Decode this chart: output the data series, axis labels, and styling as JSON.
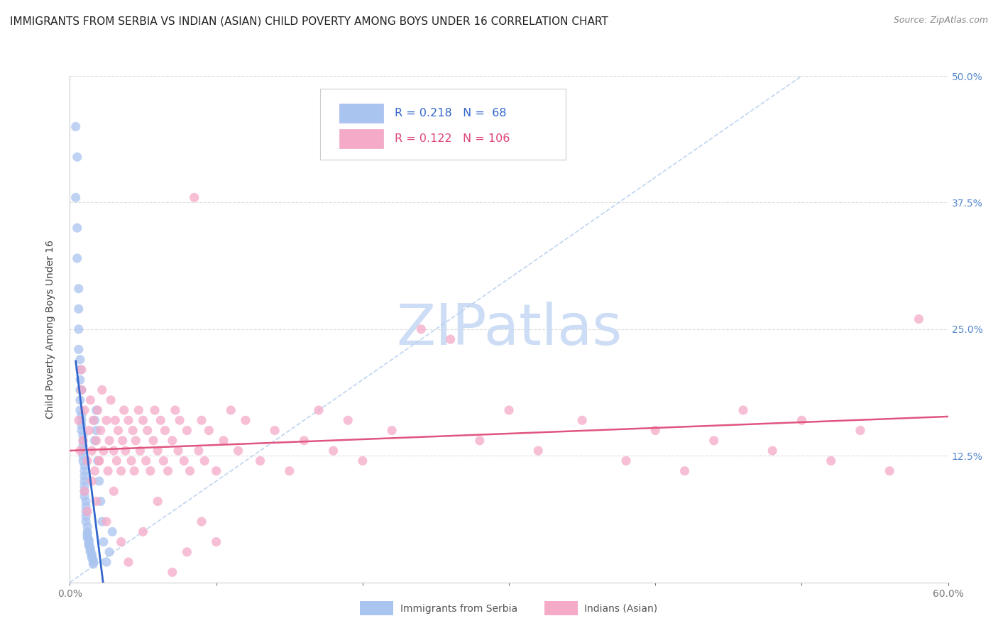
{
  "title": "IMMIGRANTS FROM SERBIA VS INDIAN (ASIAN) CHILD POVERTY AMONG BOYS UNDER 16 CORRELATION CHART",
  "source": "Source: ZipAtlas.com",
  "ylabel": "Child Poverty Among Boys Under 16",
  "xlim": [
    0.0,
    0.6
  ],
  "ylim": [
    0.0,
    0.5
  ],
  "serbia_R": 0.218,
  "serbia_N": 68,
  "indian_R": 0.122,
  "indian_N": 106,
  "serbia_color": "#aac4f0",
  "indian_color": "#f5aac8",
  "serbia_line_color": "#3366cc",
  "indian_line_color": "#e05580",
  "diag_line_color": "#b8d0f0",
  "grid_color": "#dddddd",
  "right_tick_color": "#5588cc",
  "watermark_color": "#ccddf5",
  "title_fontsize": 11,
  "axis_label_fontsize": 10,
  "tick_fontsize": 10,
  "serbia_scatter_x": [
    0.004,
    0.005,
    0.004,
    0.005,
    0.005,
    0.006,
    0.006,
    0.006,
    0.006,
    0.007,
    0.007,
    0.007,
    0.007,
    0.007,
    0.008,
    0.008,
    0.008,
    0.008,
    0.009,
    0.009,
    0.009,
    0.009,
    0.009,
    0.009,
    0.01,
    0.01,
    0.01,
    0.01,
    0.01,
    0.01,
    0.01,
    0.011,
    0.011,
    0.011,
    0.011,
    0.011,
    0.012,
    0.012,
    0.012,
    0.012,
    0.012,
    0.013,
    0.013,
    0.013,
    0.013,
    0.014,
    0.014,
    0.014,
    0.015,
    0.015,
    0.015,
    0.016,
    0.016,
    0.016,
    0.017,
    0.017,
    0.018,
    0.018,
    0.019,
    0.02,
    0.021,
    0.022,
    0.023,
    0.025,
    0.027,
    0.029,
    0.007,
    0.008
  ],
  "serbia_scatter_y": [
    0.45,
    0.42,
    0.38,
    0.35,
    0.32,
    0.29,
    0.27,
    0.25,
    0.23,
    0.21,
    0.2,
    0.19,
    0.18,
    0.17,
    0.165,
    0.16,
    0.155,
    0.15,
    0.145,
    0.14,
    0.135,
    0.13,
    0.125,
    0.12,
    0.115,
    0.11,
    0.105,
    0.1,
    0.095,
    0.09,
    0.085,
    0.08,
    0.075,
    0.07,
    0.065,
    0.06,
    0.055,
    0.05,
    0.048,
    0.046,
    0.044,
    0.042,
    0.04,
    0.038,
    0.036,
    0.034,
    0.032,
    0.03,
    0.028,
    0.026,
    0.024,
    0.022,
    0.02,
    0.018,
    0.16,
    0.14,
    0.17,
    0.15,
    0.12,
    0.1,
    0.08,
    0.06,
    0.04,
    0.02,
    0.03,
    0.05,
    0.22,
    0.19
  ],
  "indian_scatter_x": [
    0.006,
    0.007,
    0.008,
    0.009,
    0.01,
    0.012,
    0.013,
    0.014,
    0.015,
    0.016,
    0.017,
    0.018,
    0.019,
    0.02,
    0.021,
    0.022,
    0.023,
    0.025,
    0.026,
    0.027,
    0.028,
    0.03,
    0.031,
    0.032,
    0.033,
    0.035,
    0.036,
    0.037,
    0.038,
    0.04,
    0.042,
    0.043,
    0.044,
    0.045,
    0.047,
    0.048,
    0.05,
    0.052,
    0.053,
    0.055,
    0.057,
    0.058,
    0.06,
    0.062,
    0.064,
    0.065,
    0.067,
    0.07,
    0.072,
    0.074,
    0.075,
    0.078,
    0.08,
    0.082,
    0.085,
    0.088,
    0.09,
    0.092,
    0.095,
    0.1,
    0.105,
    0.11,
    0.115,
    0.12,
    0.13,
    0.14,
    0.15,
    0.16,
    0.17,
    0.18,
    0.19,
    0.2,
    0.22,
    0.24,
    0.26,
    0.28,
    0.3,
    0.32,
    0.35,
    0.38,
    0.4,
    0.42,
    0.44,
    0.46,
    0.48,
    0.5,
    0.52,
    0.54,
    0.56,
    0.58,
    0.008,
    0.01,
    0.012,
    0.015,
    0.018,
    0.02,
    0.025,
    0.03,
    0.035,
    0.04,
    0.05,
    0.06,
    0.07,
    0.08,
    0.09,
    0.1
  ],
  "indian_scatter_y": [
    0.16,
    0.13,
    0.19,
    0.14,
    0.17,
    0.12,
    0.15,
    0.18,
    0.13,
    0.16,
    0.11,
    0.14,
    0.17,
    0.12,
    0.15,
    0.19,
    0.13,
    0.16,
    0.11,
    0.14,
    0.18,
    0.13,
    0.16,
    0.12,
    0.15,
    0.11,
    0.14,
    0.17,
    0.13,
    0.16,
    0.12,
    0.15,
    0.11,
    0.14,
    0.17,
    0.13,
    0.16,
    0.12,
    0.15,
    0.11,
    0.14,
    0.17,
    0.13,
    0.16,
    0.12,
    0.15,
    0.11,
    0.14,
    0.17,
    0.13,
    0.16,
    0.12,
    0.15,
    0.11,
    0.38,
    0.13,
    0.16,
    0.12,
    0.15,
    0.11,
    0.14,
    0.17,
    0.13,
    0.16,
    0.12,
    0.15,
    0.11,
    0.14,
    0.17,
    0.13,
    0.16,
    0.12,
    0.15,
    0.25,
    0.24,
    0.14,
    0.17,
    0.13,
    0.16,
    0.12,
    0.15,
    0.11,
    0.14,
    0.17,
    0.13,
    0.16,
    0.12,
    0.15,
    0.11,
    0.26,
    0.21,
    0.09,
    0.07,
    0.1,
    0.08,
    0.12,
    0.06,
    0.09,
    0.04,
    0.02,
    0.05,
    0.08,
    0.01,
    0.03,
    0.06,
    0.04
  ]
}
